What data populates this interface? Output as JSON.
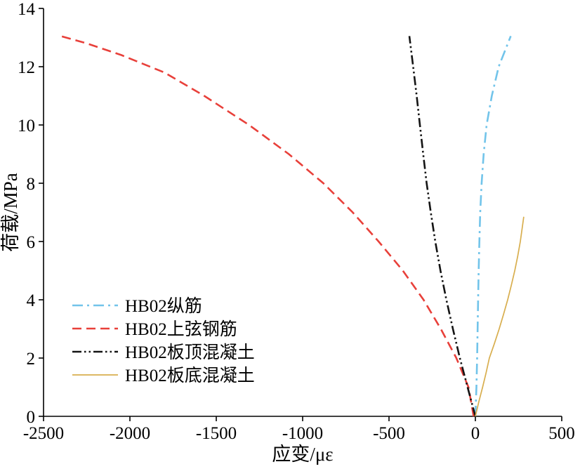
{
  "chart_data": {
    "type": "line",
    "title": "",
    "xlabel": "应变/με",
    "ylabel": "荷载/MPa",
    "xlim": [
      -2500,
      500
    ],
    "ylim": [
      0,
      14
    ],
    "xticks": [
      -2500,
      -2000,
      -1500,
      -1000,
      -500,
      0,
      500
    ],
    "yticks": [
      0,
      2,
      4,
      6,
      8,
      10,
      12,
      14
    ],
    "grid": false,
    "legend_position": "left-middle",
    "axis_color": "#000000",
    "series": [
      {
        "name": "HB02纵筋",
        "color": "#72C4EA",
        "dash": "dashdot",
        "width": 2.6,
        "points": [
          [
            0,
            0
          ],
          [
            6,
            1
          ],
          [
            10,
            2
          ],
          [
            13,
            3
          ],
          [
            16,
            4
          ],
          [
            19,
            5
          ],
          [
            23,
            6
          ],
          [
            28,
            7
          ],
          [
            36,
            8
          ],
          [
            48,
            9
          ],
          [
            65,
            10
          ],
          [
            95,
            11
          ],
          [
            135,
            12
          ],
          [
            205,
            13.05
          ]
        ]
      },
      {
        "name": "HB02上弦钢筋",
        "color": "#E8403A",
        "dash": "dashed",
        "width": 2.6,
        "points": [
          [
            -10,
            0
          ],
          [
            -40,
            1
          ],
          [
            -110,
            2
          ],
          [
            -200,
            3
          ],
          [
            -300,
            4
          ],
          [
            -420,
            5
          ],
          [
            -560,
            6
          ],
          [
            -710,
            7
          ],
          [
            -880,
            8
          ],
          [
            -1080,
            9
          ],
          [
            -1310,
            10
          ],
          [
            -1570,
            11
          ],
          [
            -1800,
            11.8
          ],
          [
            -2050,
            12.4
          ],
          [
            -2250,
            12.8
          ],
          [
            -2400,
            13.05
          ]
        ]
      },
      {
        "name": "HB02板顶混凝土",
        "color": "#141414",
        "dash": "dashdotdot",
        "width": 2.6,
        "points": [
          [
            0,
            0
          ],
          [
            -45,
            1
          ],
          [
            -90,
            2
          ],
          [
            -130,
            3
          ],
          [
            -168,
            4
          ],
          [
            -202,
            5
          ],
          [
            -232,
            6
          ],
          [
            -258,
            7
          ],
          [
            -282,
            8
          ],
          [
            -302,
            9
          ],
          [
            -321,
            10
          ],
          [
            -340,
            11
          ],
          [
            -360,
            12
          ],
          [
            -382,
            13.05
          ]
        ]
      },
      {
        "name": "HB02板底混凝土",
        "color": "#D8AE4E",
        "dash": "solid",
        "width": 1.7,
        "points": [
          [
            0,
            0
          ],
          [
            20,
            0.5
          ],
          [
            42,
            1
          ],
          [
            62,
            1.5
          ],
          [
            81,
            2
          ],
          [
            110,
            2.5
          ],
          [
            138,
            3
          ],
          [
            163,
            3.5
          ],
          [
            187,
            4
          ],
          [
            208,
            4.5
          ],
          [
            228,
            5
          ],
          [
            245,
            5.5
          ],
          [
            260,
            6
          ],
          [
            272,
            6.5
          ],
          [
            280,
            6.85
          ]
        ]
      }
    ]
  }
}
